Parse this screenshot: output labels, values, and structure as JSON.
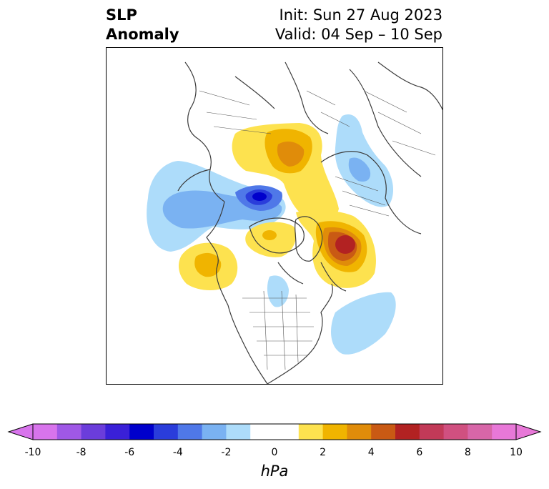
{
  "header": {
    "title_line1": "SLP",
    "title_line2": "Anomaly",
    "init_text": "Init: Sun 27 Aug 2023",
    "valid_text": "Valid: 04 Sep – 10 Sep"
  },
  "colorbar": {
    "unit": "hPa",
    "ticks": [
      "-10",
      "-8",
      "-6",
      "-4",
      "-2",
      "0",
      "2",
      "4",
      "6",
      "8",
      "10"
    ],
    "bins": [
      "#d874ec",
      "#9f58e6",
      "#6b3ddb",
      "#3a20d8",
      "#0000cc",
      "#2a3ddb",
      "#4f78e8",
      "#7ab2f2",
      "#addcfa",
      "#ffffff",
      "#ffffff",
      "#fde24f",
      "#f0b400",
      "#e08c0a",
      "#c95a14",
      "#b22222",
      "#c23a58",
      "#d05080",
      "#d766a8",
      "#e878d8"
    ],
    "extend": "both"
  },
  "map": {
    "projection": "north-polar-stereographic",
    "field": "sea-level-pressure-anomaly"
  }
}
